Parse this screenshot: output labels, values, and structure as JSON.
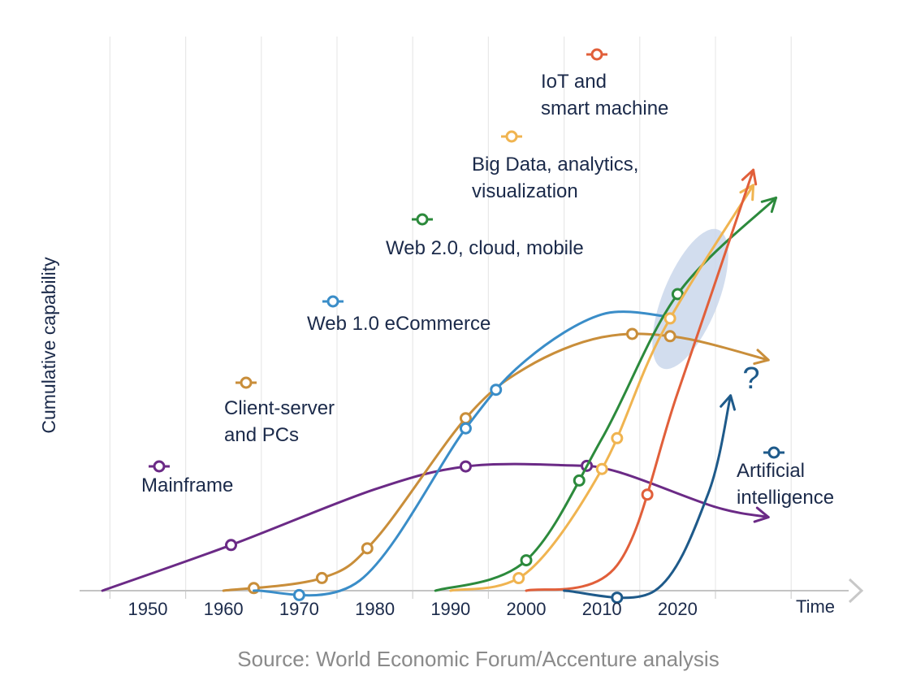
{
  "chart_data": {
    "type": "line",
    "title": "",
    "xlabel": "Time",
    "ylabel": "Cumulative capability",
    "source": "Source: World Economic Forum/Accenture analysis",
    "x_ticks": [
      "1950",
      "1960",
      "1970",
      "1980",
      "1990",
      "2000",
      "2010",
      "2020"
    ],
    "annotation": "?",
    "colors": {
      "mainframe": "#6b2a86",
      "client_server": "#c98e3a",
      "web1": "#3a8dc8",
      "web2": "#2c8a3c",
      "bigdata": "#f0b450",
      "iot": "#e15f3a",
      "ai": "#1e5a8a",
      "highlight": "#c7d4ea",
      "axis": "#c4c4c4",
      "text": "#1b2a4a"
    },
    "series": [
      {
        "key": "mainframe",
        "name": "Mainframe",
        "label_lines": [
          "Mainframe"
        ],
        "points": [
          [
            1944,
            0
          ],
          [
            1961,
            18
          ],
          [
            1980,
            40
          ],
          [
            1992,
            49
          ],
          [
            2005,
            49.5
          ],
          [
            2012,
            47
          ],
          [
            2025,
            33
          ],
          [
            2032,
            29
          ]
        ],
        "markers": [
          1961,
          1992,
          2008
        ]
      },
      {
        "key": "client_server",
        "name": "Client-server and PCs",
        "label_lines": [
          "Client-server",
          "and PCs"
        ],
        "points": [
          [
            1960,
            0
          ],
          [
            1973,
            5
          ],
          [
            1980,
            20
          ],
          [
            1992,
            68
          ],
          [
            2000,
            88
          ],
          [
            2010,
            100
          ],
          [
            2020,
            100
          ],
          [
            2032,
            91
          ]
        ],
        "markers": [
          1964,
          1973,
          1979,
          1992,
          2014,
          2019
        ]
      },
      {
        "key": "web1",
        "name": "Web 1.0 eCommerce",
        "label_lines": [
          "Web 1.0 eCommerce"
        ],
        "points": [
          [
            1964,
            0
          ],
          [
            1978,
            4
          ],
          [
            1992,
            64
          ],
          [
            2000,
            91
          ],
          [
            2010,
            109
          ],
          [
            2019,
            108
          ]
        ],
        "markers": [
          1970,
          1992,
          1996
        ]
      },
      {
        "key": "web2",
        "name": "Web 2.0, cloud, mobile",
        "label_lines": [
          "Web 2.0, cloud, mobile"
        ],
        "points": [
          [
            1988,
            0
          ],
          [
            2000,
            12
          ],
          [
            2010,
            60
          ],
          [
            2020,
            117
          ],
          [
            2033,
            155
          ]
        ],
        "markers": [
          2000,
          2007,
          2020
        ]
      },
      {
        "key": "bigdata",
        "name": "Big Data, analytics, visualization",
        "label_lines": [
          "Big Data, analytics,",
          "visualization"
        ],
        "points": [
          [
            1990,
            0
          ],
          [
            2000,
            7
          ],
          [
            2010,
            48
          ],
          [
            2018,
            102
          ],
          [
            2030,
            160
          ]
        ],
        "markers": [
          1999,
          2010,
          2012,
          2019
        ]
      },
      {
        "key": "iot",
        "name": "IoT and smart machine",
        "label_lines": [
          "IoT and",
          "smart machine"
        ],
        "points": [
          [
            2000,
            0
          ],
          [
            2012,
            10
          ],
          [
            2020,
            78
          ],
          [
            2030,
            166
          ]
        ],
        "markers": [
          2016
        ]
      },
      {
        "key": "ai",
        "name": "Artificial intelligence",
        "label_lines": [
          "Artificial",
          "intelligence"
        ],
        "points": [
          [
            2005,
            0
          ],
          [
            2017,
            0
          ],
          [
            2024,
            38
          ],
          [
            2027,
            77
          ]
        ],
        "markers": [
          2012
        ]
      }
    ]
  }
}
